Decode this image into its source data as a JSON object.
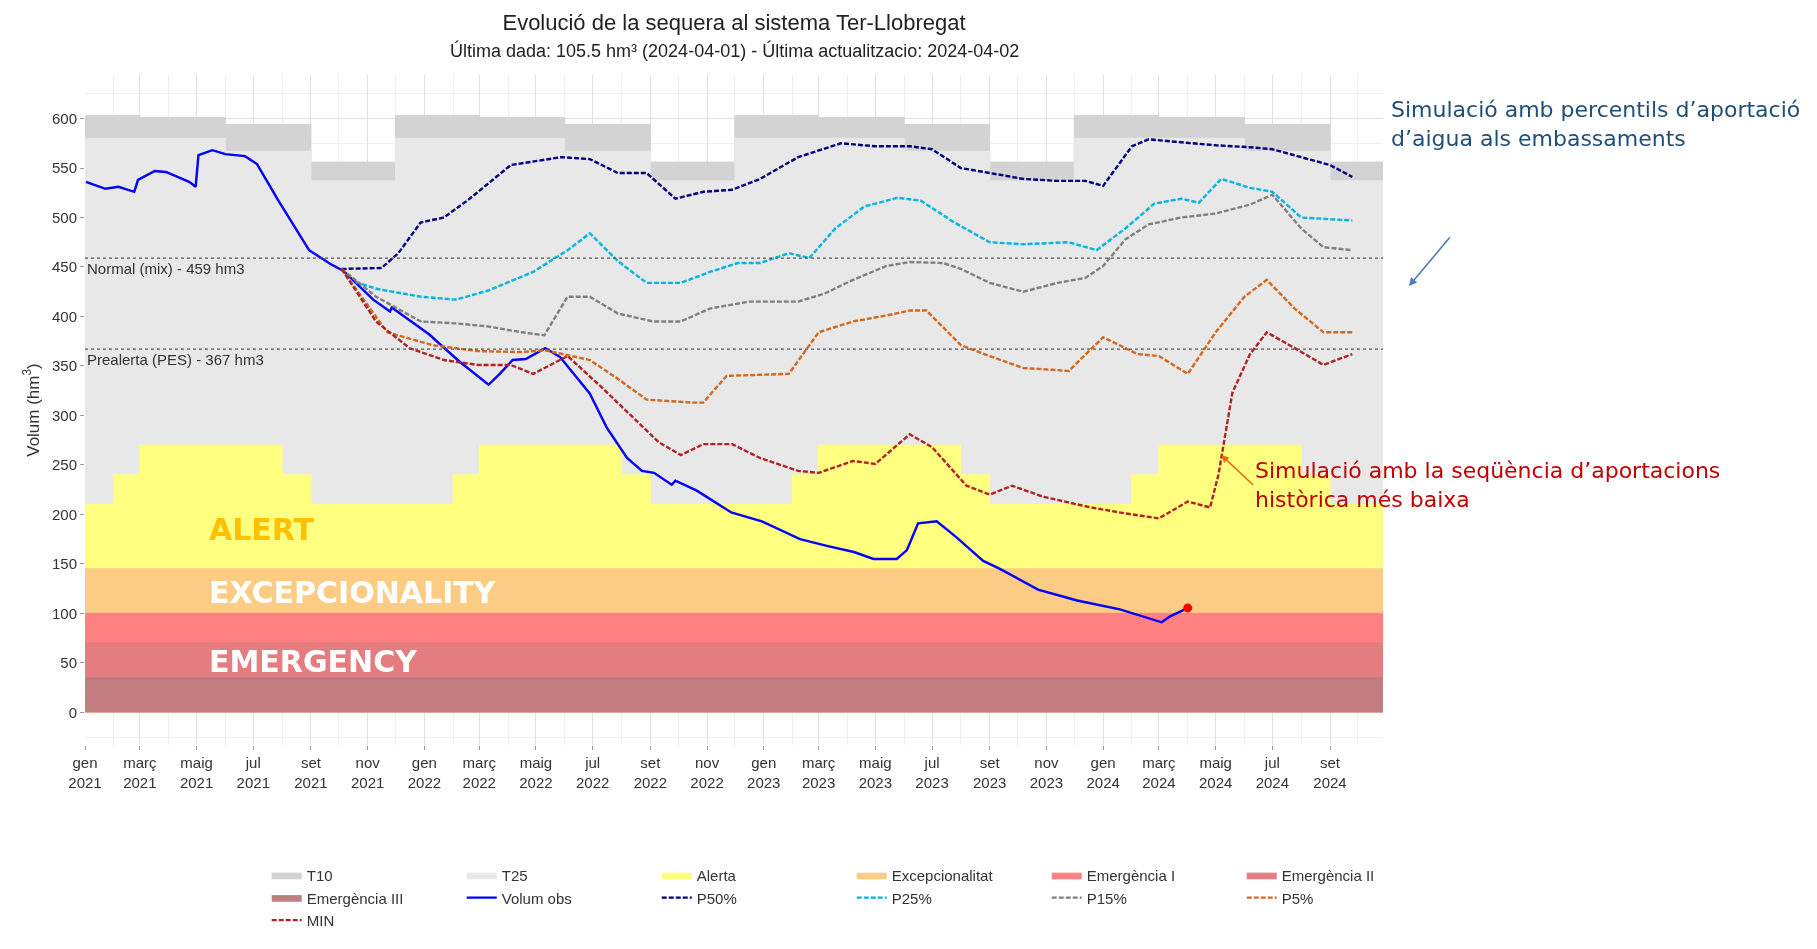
{
  "chart_data": {
    "type": "line",
    "title": "Evolució de la sequera al sistema Ter-Llobregat",
    "subtitle": "Última dada: 105.5 hm³ (2024-04-01) - Última actualitzacio: 2024-04-02",
    "ylabel": "Volum (hm$^{3}$)",
    "series": [
      {
        "name": "T10",
        "type": "area",
        "color": "#d3d3d3",
        "x": [
          "2021-01-01",
          "2021-03-01",
          "2021-03-01",
          "2021-06-01",
          "2021-06-01",
          "2021-09-01",
          "2021-09-01",
          "2021-12-01",
          "2021-12-01",
          "2022-03-01",
          "2022-03-01",
          "2022-06-01",
          "2022-06-01",
          "2022-09-01",
          "2022-09-01",
          "2022-12-01",
          "2022-12-01",
          "2023-03-01",
          "2023-03-01",
          "2023-06-01",
          "2023-06-01",
          "2023-09-01",
          "2023-09-01",
          "2023-12-01",
          "2023-12-01",
          "2024-03-01",
          "2024-03-01",
          "2024-06-01",
          "2024-06-01",
          "2024-09-01",
          "2024-09-01",
          "2024-10-28"
        ],
        "values": [
          603,
          603,
          601,
          601,
          594,
          594,
          556,
          556,
          603,
          603,
          601,
          601,
          594,
          594,
          556,
          556,
          603,
          603,
          601,
          601,
          594,
          594,
          556,
          556,
          603,
          603,
          601,
          601,
          594,
          594,
          556,
          556
        ]
      },
      {
        "name": "T25",
        "type": "area",
        "color": "#e8e8e8",
        "x": [
          "2021-01-01",
          "2021-06-01",
          "2021-06-01",
          "2021-09-01",
          "2021-09-01",
          "2021-12-01",
          "2021-12-01",
          "2022-06-01",
          "2022-06-01",
          "2022-09-01",
          "2022-09-01",
          "2022-12-01",
          "2022-12-01",
          "2023-06-01",
          "2023-06-01",
          "2023-09-01",
          "2023-09-01",
          "2023-12-01",
          "2023-12-01",
          "2024-06-01",
          "2024-06-01",
          "2024-09-01",
          "2024-09-01",
          "2024-10-28"
        ],
        "values": [
          580,
          580,
          567,
          567,
          537,
          537,
          580,
          580,
          567,
          567,
          537,
          537,
          580,
          580,
          567,
          567,
          537,
          537,
          580,
          580,
          567,
          567,
          537,
          537
        ]
      },
      {
        "name": "Alerta",
        "type": "area",
        "color": "#ffff80",
        "x": [
          "2021-01-01",
          "2021-02-01",
          "2021-02-01",
          "2021-03-01",
          "2021-03-01",
          "2021-08-01",
          "2021-08-01",
          "2021-09-01",
          "2021-09-01",
          "2022-02-01",
          "2022-02-01",
          "2022-03-01",
          "2022-03-01",
          "2022-08-01",
          "2022-08-01",
          "2022-09-01",
          "2022-09-01",
          "2023-02-01",
          "2023-02-01",
          "2023-03-01",
          "2023-03-01",
          "2023-08-01",
          "2023-08-01",
          "2023-09-01",
          "2023-09-01",
          "2024-02-01",
          "2024-02-01",
          "2024-03-01",
          "2024-03-01",
          "2024-08-01",
          "2024-08-01",
          "2024-09-01",
          "2024-09-01",
          "2024-10-28"
        ],
        "values": [
          210,
          210,
          240,
          240,
          270,
          270,
          240,
          240,
          210,
          210,
          240,
          240,
          270,
          270,
          240,
          240,
          210,
          210,
          240,
          240,
          270,
          270,
          240,
          240,
          210,
          210,
          240,
          240,
          270,
          270,
          240,
          240,
          210,
          210
        ]
      },
      {
        "name": "Excepcionalitat",
        "type": "area",
        "color": "#fdcc84",
        "x": [
          "2021-01-01",
          "2024-10-28"
        ],
        "values": [
          145,
          145
        ]
      },
      {
        "name": "Emergència I",
        "type": "area",
        "color": "#ff8080",
        "x": [
          "2021-01-01",
          "2024-10-28"
        ],
        "values": [
          100,
          100
        ]
      },
      {
        "name": "Emergència II",
        "type": "area",
        "color": "#e37d80",
        "x": [
          "2021-01-01",
          "2024-10-28"
        ],
        "values": [
          70,
          70
        ]
      },
      {
        "name": "Emergència III",
        "type": "area",
        "color": "#c17d80",
        "x": [
          "2021-01-01",
          "2024-10-28"
        ],
        "values": [
          35,
          35
        ]
      },
      {
        "name": "Volum obs",
        "color": "#0000ff",
        "line_style": "solid",
        "x": [
          "2021-01-02",
          "2021-01-23",
          "2021-02-06",
          "2021-02-23",
          "2021-02-27",
          "2021-03-17",
          "2021-03-29",
          "2021-04-23",
          "2021-04-30",
          "2021-05-03",
          "2021-05-18",
          "2021-06-01",
          "2021-06-22",
          "2021-07-05",
          "2021-07-28",
          "2021-08-30",
          "2021-09-22",
          "2021-10-06",
          "2021-11-07",
          "2021-11-25",
          "2021-11-27",
          "2022-01-06",
          "2022-02-07",
          "2022-03-11",
          "2022-03-23",
          "2022-04-06",
          "2022-04-20",
          "2022-05-11",
          "2022-05-27",
          "2022-06-28",
          "2022-07-16",
          "2022-08-07",
          "2022-08-23",
          "2022-09-05",
          "2022-09-24",
          "2022-09-28",
          "2022-10-21",
          "2022-11-27",
          "2022-12-30",
          "2023-02-09",
          "2023-03-11",
          "2023-04-08",
          "2023-04-29",
          "2023-05-24",
          "2023-06-04",
          "2023-06-16",
          "2023-07-06",
          "2023-07-27",
          "2023-08-25",
          "2023-09-12",
          "2023-10-23",
          "2023-12-04",
          "2024-01-19",
          "2024-03-04",
          "2024-03-13",
          "2024-03-29",
          "2024-04-01"
        ],
        "values": [
          536,
          529,
          531,
          526,
          538,
          547,
          546,
          536,
          531,
          563,
          568,
          564,
          562,
          554,
          517,
          467,
          453,
          446,
          417,
          405,
          409,
          382,
          355,
          331,
          342,
          356,
          357,
          368,
          359,
          322,
          288,
          257,
          244,
          242,
          230,
          234,
          224,
          202,
          193,
          175,
          168,
          162,
          155,
          155,
          164,
          191,
          193,
          177,
          153,
          145,
          124,
          113,
          104,
          91,
          97,
          104,
          105.5
        ]
      },
      {
        "name": "P50%",
        "color": "#000080",
        "line_style": "dashed",
        "x": [
          "2021-10-04",
          "2021-11-16",
          "2021-12-04",
          "2021-12-28",
          "2022-01-22",
          "2022-02-16",
          "2022-04-04",
          "2022-05-28",
          "2022-06-28",
          "2022-07-28",
          "2022-08-28",
          "2022-09-28",
          "2022-10-28",
          "2022-11-28",
          "2022-12-28",
          "2023-02-07",
          "2023-03-25",
          "2023-05-01",
          "2023-06-07",
          "2023-07-01",
          "2023-08-01",
          "2023-09-01",
          "2023-10-07",
          "2023-11-13",
          "2023-12-13",
          "2024-01-01",
          "2024-02-01",
          "2024-02-19",
          "2024-03-25",
          "2024-05-01",
          "2024-06-07",
          "2024-07-01",
          "2024-08-01",
          "2024-09-01",
          "2024-09-25"
        ],
        "values": [
          448,
          449,
          464,
          495,
          500,
          517,
          553,
          561,
          559,
          545,
          545,
          519,
          526,
          528,
          539,
          561,
          575,
          572,
          572,
          569,
          550,
          545,
          539,
          537,
          537,
          532,
          572,
          579,
          576,
          573,
          571,
          569,
          561,
          553,
          541
        ]
      },
      {
        "name": "P25%",
        "color": "#00b4e0",
        "line_style": "dashed",
        "x": [
          "2021-10-19",
          "2021-11-10",
          "2021-12-28",
          "2022-02-04",
          "2022-03-10",
          "2022-04-28",
          "2022-06-04",
          "2022-06-28",
          "2022-07-28",
          "2022-08-28",
          "2022-10-04",
          "2022-11-04",
          "2022-12-04",
          "2022-12-28",
          "2023-01-28",
          "2023-02-19",
          "2023-03-19",
          "2023-04-19",
          "2023-05-25",
          "2023-06-19",
          "2023-07-25",
          "2023-09-01",
          "2023-10-07",
          "2023-11-25",
          "2023-12-25",
          "2024-01-25",
          "2024-02-25",
          "2024-03-25",
          "2024-04-13",
          "2024-05-07",
          "2024-06-07",
          "2024-07-01",
          "2024-08-01",
          "2024-09-25"
        ],
        "values": [
          435,
          428,
          420,
          417,
          426,
          445,
          467,
          484,
          456,
          434,
          434,
          445,
          454,
          454,
          464,
          459,
          489,
          511,
          520,
          517,
          495,
          475,
          473,
          475,
          467,
          489,
          514,
          519,
          515,
          539,
          530,
          526,
          500,
          497
        ]
      },
      {
        "name": "P15%",
        "color": "#808080",
        "line_style": "dashed",
        "x": [
          "2021-10-04",
          "2021-11-10",
          "2021-12-28",
          "2022-02-04",
          "2022-03-10",
          "2022-04-16",
          "2022-05-10",
          "2022-06-04",
          "2022-06-28",
          "2022-07-28",
          "2022-09-04",
          "2022-10-04",
          "2022-11-04",
          "2022-12-16",
          "2023-02-07",
          "2023-03-07",
          "2023-04-07",
          "2023-05-13",
          "2023-06-07",
          "2023-07-13",
          "2023-08-01",
          "2023-09-01",
          "2023-10-07",
          "2023-11-13",
          "2023-12-13",
          "2024-01-01",
          "2024-01-25",
          "2024-02-19",
          "2024-03-25",
          "2024-05-01",
          "2024-06-07",
          "2024-07-01",
          "2024-08-01",
          "2024-08-25",
          "2024-09-25"
        ],
        "values": [
          448,
          420,
          395,
          393,
          390,
          384,
          381,
          420,
          420,
          403,
          395,
          395,
          408,
          415,
          415,
          423,
          437,
          451,
          455,
          454,
          448,
          434,
          425,
          434,
          439,
          451,
          478,
          493,
          500,
          504,
          513,
          523,
          489,
          470,
          467
        ]
      },
      {
        "name": "P5%",
        "color": "#d2691e",
        "line_style": "dashed",
        "x": [
          "2021-10-04",
          "2021-11-22",
          "2022-01-10",
          "2022-02-28",
          "2022-04-16",
          "2022-05-10",
          "2022-06-28",
          "2022-07-28",
          "2022-08-28",
          "2022-10-16",
          "2022-10-28",
          "2022-11-22",
          "2023-01-28",
          "2023-03-01",
          "2023-04-07",
          "2023-05-13",
          "2023-06-07",
          "2023-06-25",
          "2023-08-01",
          "2023-09-01",
          "2023-10-07",
          "2023-11-25",
          "2024-01-01",
          "2024-02-07",
          "2024-03-01",
          "2024-04-01",
          "2024-05-01",
          "2024-06-01",
          "2024-06-25",
          "2024-07-25",
          "2024-08-25",
          "2024-09-25"
        ],
        "values": [
          448,
          384,
          371,
          365,
          364,
          366,
          356,
          337,
          316,
          313,
          313,
          340,
          342,
          384,
          395,
          401,
          406,
          406,
          371,
          360,
          348,
          345,
          379,
          362,
          360,
          342,
          384,
          420,
          437,
          408,
          384,
          384
        ]
      },
      {
        "name": "MIN",
        "color": "#b22222",
        "line_style": "dashed",
        "x": [
          "2021-10-04",
          "2021-11-10",
          "2021-12-16",
          "2022-01-22",
          "2022-02-28",
          "2022-04-04",
          "2022-04-28",
          "2022-06-04",
          "2022-07-10",
          "2022-08-10",
          "2022-09-10",
          "2022-10-04",
          "2022-10-28",
          "2022-11-28",
          "2022-12-28",
          "2023-02-07",
          "2023-03-01",
          "2023-04-07",
          "2023-05-01",
          "2023-06-07",
          "2023-07-01",
          "2023-08-07",
          "2023-09-01",
          "2023-09-25",
          "2023-10-28",
          "2023-12-19",
          "2024-01-25",
          "2024-03-01",
          "2024-04-01",
          "2024-04-25",
          "2024-05-04",
          "2024-05-10",
          "2024-05-19",
          "2024-06-07",
          "2024-06-25",
          "2024-07-25",
          "2024-08-25",
          "2024-09-25"
        ],
        "values": [
          448,
          395,
          368,
          356,
          351,
          351,
          342,
          360,
          329,
          301,
          273,
          260,
          271,
          271,
          257,
          244,
          242,
          254,
          251,
          281,
          268,
          229,
          220,
          229,
          218,
          207,
          201,
          196,
          213,
          207,
          240,
          273,
          323,
          362,
          384,
          368,
          351,
          362
        ]
      },
      {
        "type": "scatter",
        "color": "#ff0000",
        "marker": "circle",
        "x": [
          "2024-04-01"
        ],
        "values": [
          105.5
        ]
      }
    ],
    "ref_lines": [
      {
        "axis": "y",
        "value": 459,
        "label": "Normal (mix) - 459 hm3",
        "line_style": "dotted",
        "color": "#555555"
      },
      {
        "axis": "y",
        "value": 367,
        "label": "Prealerta (PES) - 367 hm3",
        "line_style": "dotted",
        "color": "#555555"
      }
    ],
    "annotations": [
      "ALERT",
      "EXCEPCIONALITY",
      "EMERGENCY",
      {
        "text": "Simulació amb la seqüència d’aportacions\nhistòrica més baixa",
        "x": "2024-05-07",
        "y": 260
      },
      "Simulació amb percentils d’aportació\nd’aigua als embassaments"
    ],
    "xlim": [
      "2021-01-01",
      "2024-10-28"
    ],
    "ylim": [
      -33,
      644
    ],
    "xticks": [
      {
        "value": "2021-01-01",
        "label": "gen\n2021"
      },
      {
        "value": "2021-03-01",
        "label": "març\n2021"
      },
      {
        "value": "2021-05-01",
        "label": "maig\n2021"
      },
      {
        "value": "2021-07-01",
        "label": "jul\n2021"
      },
      {
        "value": "2021-09-01",
        "label": "set\n2021"
      },
      {
        "value": "2021-11-01",
        "label": "nov\n2021"
      },
      {
        "value": "2022-01-01",
        "label": "gen\n2022"
      },
      {
        "value": "2022-03-01",
        "label": "març\n2022"
      },
      {
        "value": "2022-05-01",
        "label": "maig\n2022"
      },
      {
        "value": "2022-07-01",
        "label": "jul\n2022"
      },
      {
        "value": "2022-09-01",
        "label": "set\n2022"
      },
      {
        "value": "2022-11-01",
        "label": "nov\n2022"
      },
      {
        "value": "2023-01-01",
        "label": "gen\n2023"
      },
      {
        "value": "2023-03-01",
        "label": "març\n2023"
      },
      {
        "value": "2023-05-01",
        "label": "maig\n2023"
      },
      {
        "value": "2023-07-01",
        "label": "jul\n2023"
      },
      {
        "value": "2023-09-01",
        "label": "set\n2023"
      },
      {
        "value": "2023-11-01",
        "label": "nov\n2023"
      },
      {
        "value": "2024-01-01",
        "label": "gen\n2024"
      },
      {
        "value": "2024-03-01",
        "label": "març\n2024"
      },
      {
        "value": "2024-05-01",
        "label": "maig\n2024"
      },
      {
        "value": "2024-07-01",
        "label": "jul\n2024"
      },
      {
        "value": "2024-09-01",
        "label": "set\n2024"
      }
    ],
    "yticks": [
      0,
      50,
      100,
      150,
      200,
      250,
      300,
      350,
      400,
      450,
      500,
      550,
      600
    ],
    "grid": true,
    "legend": "bottom",
    "marker": "none"
  }
}
